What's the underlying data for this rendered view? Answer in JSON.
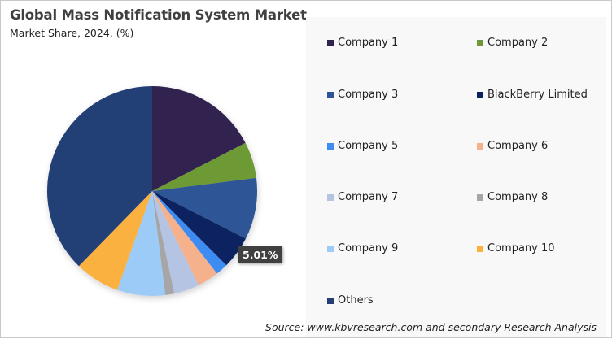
{
  "header": {
    "title": "Global Mass Notification System Market",
    "subtitle": "Market Share, 2024, (%)"
  },
  "data_label": "5.01%",
  "source": "Source: www.kbvresearch.com and secondary Research Analysis",
  "legend": [
    {
      "label": "Company 1",
      "color": "#30234f"
    },
    {
      "label": "Company 2",
      "color": "#6d9a34"
    },
    {
      "label": "Company 3",
      "color": "#2f5496"
    },
    {
      "label": "BlackBerry Limited",
      "color": "#0b2160"
    },
    {
      "label": "Company 5",
      "color": "#3d8cf2"
    },
    {
      "label": "Company 6",
      "color": "#f4b18c"
    },
    {
      "label": "Company 7",
      "color": "#b4c4e2"
    },
    {
      "label": "Company 8",
      "color": "#a6a6a6"
    },
    {
      "label": "Company 9",
      "color": "#9dcbf8"
    },
    {
      "label": "Company 10",
      "color": "#fbb140"
    },
    {
      "label": "Others",
      "color": "#243f74"
    }
  ],
  "chart_data": {
    "type": "pie",
    "title": "Global Mass Notification System Market",
    "subtitle": "Market Share, 2024, (%)",
    "categories": [
      "Company 1",
      "Company 2",
      "Company 3",
      "BlackBerry Limited",
      "Company 5",
      "Company 6",
      "Company 7",
      "Company 8",
      "Company 9",
      "Company 10",
      "Others"
    ],
    "values": [
      17.4,
      5.6,
      9.5,
      5.01,
      1.9,
      3.3,
      3.9,
      1.4,
      7.4,
      6.9,
      37.69
    ],
    "colors": [
      "#30234f",
      "#6d9a34",
      "#2f5496",
      "#0b2160",
      "#3d8cf2",
      "#f4b18c",
      "#b4c4e2",
      "#a6a6a6",
      "#9dcbf8",
      "#fbb140",
      "#243f74"
    ],
    "start_angle": 0,
    "direction": "clockwise",
    "data_labels": [
      {
        "category": "BlackBerry Limited",
        "text": "5.01%"
      }
    ],
    "legend_position": "right",
    "units": "%"
  }
}
